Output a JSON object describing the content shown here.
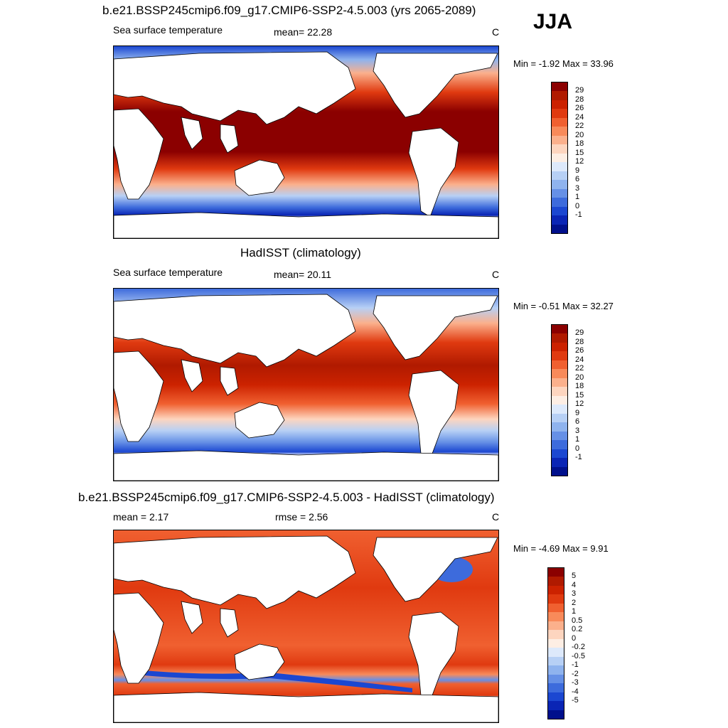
{
  "season": "JJA",
  "panels": [
    {
      "title": "b.e21.BSSP245cmip6.f09_g17.CMIP6-SSP2-4.5.003 (yrs 2065-2089)",
      "left_label": "Sea surface temperature",
      "center_label": "mean=  22.28",
      "units": "C",
      "minmax": "Min =  -1.92 Max =  33.96",
      "colorbar_labels": [
        "29",
        "28",
        "26",
        "24",
        "22",
        "20",
        "18",
        "15",
        "12",
        "9",
        "6",
        "3",
        "1",
        "0",
        "-1"
      ],
      "colors": [
        "#8b0000",
        "#b01a00",
        "#cc2200",
        "#e03a10",
        "#f06030",
        "#f88a5a",
        "#fbb08c",
        "#fdd5bf",
        "#fdeee4",
        "#dde9fb",
        "#b7d0f5",
        "#8fb3ee",
        "#6690e6",
        "#3d6bdc",
        "#1b47d1",
        "#0a25b5",
        "#00108c"
      ]
    },
    {
      "title": "HadISST (climatology)",
      "left_label": "Sea surface temperature",
      "center_label": "mean=  20.11",
      "units": "C",
      "minmax": "Min =  -0.51 Max =  32.27",
      "colorbar_labels": [
        "29",
        "28",
        "26",
        "24",
        "22",
        "20",
        "18",
        "15",
        "12",
        "9",
        "6",
        "3",
        "1",
        "0",
        "-1"
      ],
      "colors": [
        "#8b0000",
        "#b01a00",
        "#cc2200",
        "#e03a10",
        "#f06030",
        "#f88a5a",
        "#fbb08c",
        "#fdd5bf",
        "#fdeee4",
        "#dde9fb",
        "#b7d0f5",
        "#8fb3ee",
        "#6690e6",
        "#3d6bdc",
        "#1b47d1",
        "#0a25b5",
        "#00108c"
      ]
    },
    {
      "title": "b.e21.BSSP245cmip6.f09_g17.CMIP6-SSP2-4.5.003 - HadISST (climatology)",
      "left_label": "mean =   2.17",
      "center_label": "rmse =   2.56",
      "units": "C",
      "minmax": "Min =  -4.69 Max =   9.91",
      "colorbar_labels": [
        "5",
        "4",
        "3",
        "2",
        "1",
        "0.5",
        "0.2",
        "0",
        "-0.2",
        "-0.5",
        "-1",
        "-2",
        "-3",
        "-4",
        "-5"
      ],
      "colors": [
        "#8b0000",
        "#b01a00",
        "#cc2200",
        "#e03a10",
        "#f06030",
        "#f88a5a",
        "#fbb08c",
        "#fdd5bf",
        "#fdeee4",
        "#dde9fb",
        "#b7d0f5",
        "#8fb3ee",
        "#6690e6",
        "#3d6bdc",
        "#1b47d1",
        "#0a25b5",
        "#00108c"
      ]
    }
  ]
}
